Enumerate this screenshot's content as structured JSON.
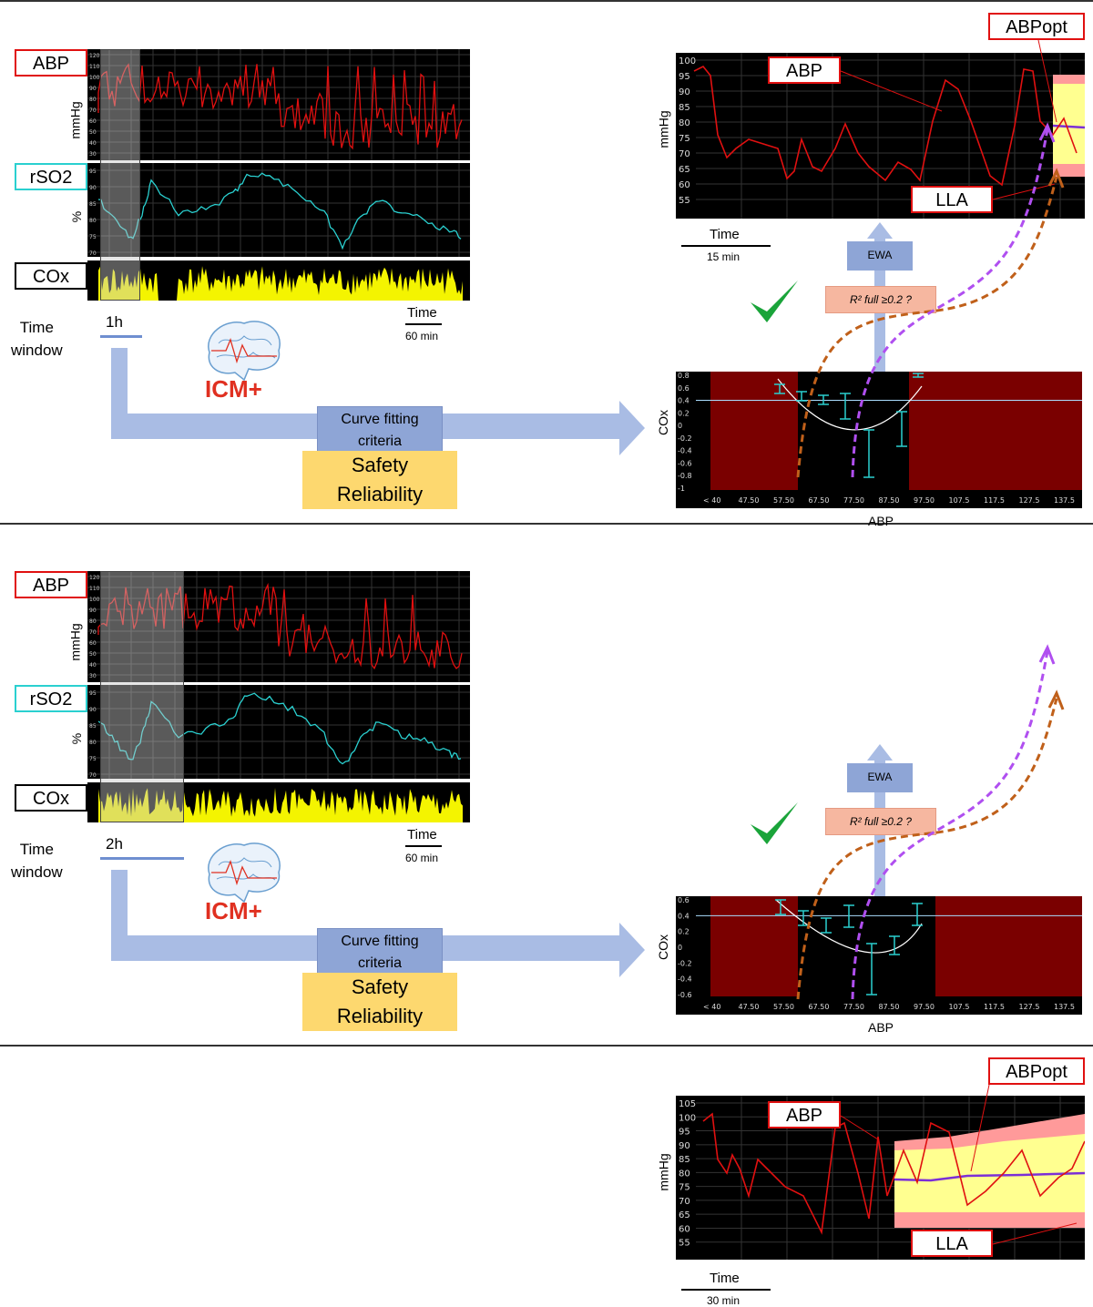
{
  "panels": [
    {
      "time_window": "1h",
      "right_time_label": "Time",
      "right_time_value": "15 min"
    },
    {
      "time_window": "2h",
      "right_time_label": "Time",
      "right_time_value": "30 min"
    }
  ],
  "labels": {
    "abp": "ABP",
    "rso2": "rSO2",
    "cox": "COx",
    "mmhg": "mmHg",
    "percent": "%",
    "time_window": "Time\nwindow",
    "time": "Time",
    "time_60": "60 min",
    "icm": "ICM+",
    "curve_fitting": "Curve fitting criteria",
    "safety": "Safety",
    "reliability": "Reliability",
    "abpopt": "ABPopt",
    "lla": "LLA",
    "ewa": "EWA",
    "r2": "R² full ≥0.2 ?",
    "cox_axis": "COx",
    "abp_axis": "ABP"
  },
  "cox_axis_ticks_1": [
    "0.8",
    "0.6",
    "0.4",
    "0.2",
    "0",
    "-0.2",
    "-0.4",
    "-0.6",
    "-0.8",
    "-1"
  ],
  "cox_axis_ticks_2": [
    "0.6",
    "0.4",
    "0.2",
    "0",
    "-0.2",
    "-0.4",
    "-0.6"
  ],
  "abp_bins": [
    "< 40",
    "47.50",
    "57.50",
    "67.50",
    "77.50",
    "87.50",
    "97.50",
    "107.5",
    "117.5",
    "127.5",
    "137.5"
  ],
  "right_y_ticks_1": [
    "100",
    "95",
    "90",
    "85",
    "80",
    "75",
    "70",
    "65",
    "60",
    "55"
  ],
  "right_y_ticks_2": [
    "105",
    "100",
    "95",
    "90",
    "85",
    "80",
    "75",
    "70",
    "65",
    "60",
    "55"
  ],
  "colors": {
    "abp": "#e01010",
    "rso2": "#2ad0d0",
    "cox": "#f4f400",
    "dark_red": "#7a0000",
    "optimal": "#7b2fd6",
    "lla_arrow": "#c0601a"
  }
}
